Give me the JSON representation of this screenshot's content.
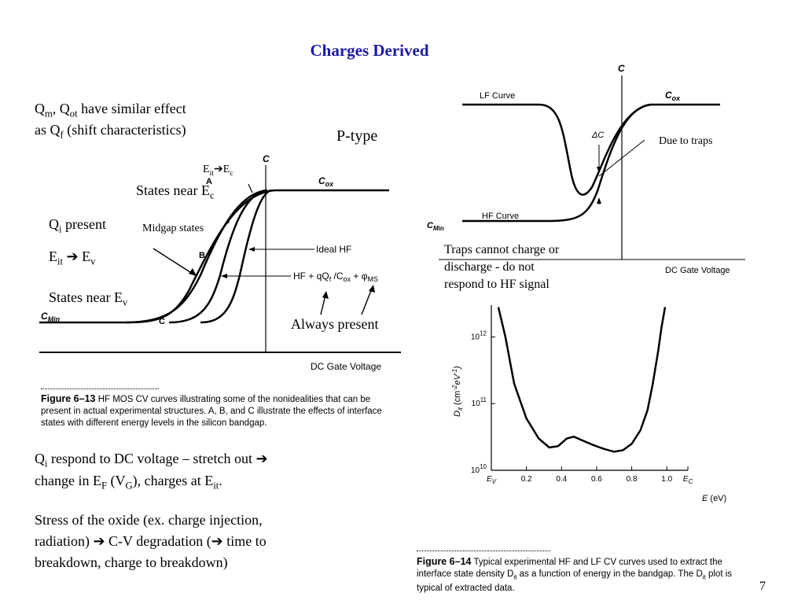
{
  "slide": {
    "title": "Charges Derived",
    "page_number": "7",
    "ptype_label": "P-type",
    "intro": {
      "q": "Q",
      "m_sub": "m",
      "comma": ", Q",
      "ot_sub": "ot",
      "line1_rest": " have similar effect",
      "line2_a": "as Q",
      "f_sub": "f",
      "line2_b": " (shift characteristics)"
    },
    "left_labels": {
      "eit": "E",
      "eit_sub": "it",
      "arrow": "➔",
      "ec": "E",
      "ec_sub": "c",
      "states_near_ec": "States near E",
      "states_near_ec_sub": "c",
      "qi_present": "Q",
      "qi_sub": "i",
      "qi_present_rest": " present",
      "midgap": "Midgap states",
      "eit_ev_a": "E",
      "eit_ev_sub": "it",
      "eit_ev_arrow": " ➔ ",
      "eit_ev_b": "E",
      "eit_ev_sub2": "v",
      "states_near_ev": "States near E",
      "states_near_ev_sub": "v",
      "always_present": "Always present"
    },
    "bottom_text": {
      "p1_a": "Q",
      "p1_sub": "i",
      "p1_b": " respond to DC voltage – stretch out  ➔",
      "p1_c": "change in E",
      "p1_sub2": "F",
      "p1_d": " (V",
      "p1_sub3": "G",
      "p1_e": "), charges at E",
      "p1_sub4": "it",
      "p1_f": ".",
      "p2_line1": "Stress of the oxide (ex. charge injection,",
      "p2_line2": "radiation) ➔  C-V degradation (➔ time to",
      "p2_line3": "breakdown, charge to breakdown)"
    },
    "right_labels": {
      "due_to_traps": "Due to traps",
      "traps_line1": "Traps cannot charge or",
      "traps_line2": "discharge - do not",
      "traps_line3": "respond to HF signal"
    },
    "fig13": {
      "c_axis": "C",
      "cox": "C",
      "cox_sub": "ox",
      "cmin": "C",
      "cmin_sub": "Min",
      "a": "A",
      "b": "B",
      "c": "C",
      "ideal_hf": "Ideal HF",
      "hf_shift": "HF + qQ",
      "hf_shift_f": "f",
      "hf_shift_mid": " /C",
      "hf_shift_ox": "ox",
      "hf_shift_end": " + φ",
      "hf_shift_ms": "MS",
      "xlabel": "DC Gate Voltage",
      "caption_bold": "Figure 6–13",
      "caption_text": "HF MOS CV curves illustrating some of the nonidealities that can be present in actual experimental structures. A, B, and C illustrate the effects of interface states with different energy levels in the silicon bandgap."
    },
    "fig14_cv": {
      "c_axis": "C",
      "lf": "LF Curve",
      "hf": "HF Curve",
      "cox": "C",
      "cox_sub": "ox",
      "cmin": "C",
      "cmin_sub": "Min",
      "delta_c": "ΔC",
      "xlabel": "DC Gate Voltage"
    },
    "fig14": {
      "caption_bold": "Figure 6–14",
      "caption_text": "Typical experimental HF and LF CV curves used to extract the interface state density D",
      "caption_text_sub": "it",
      "caption_text2": " as a function of energy in the bandgap. The D",
      "caption_text_sub2": "it",
      "caption_text3": " plot is typical of extracted data."
    }
  },
  "chart_data": {
    "type": "line",
    "title": "",
    "xlabel": "E (eV)",
    "ylabel": "D_it (cm^-2 eV^-1)",
    "yscale": "log",
    "x_ticks": [
      "E_V",
      "0.2",
      "0.4",
      "0.6",
      "0.8",
      "1.0",
      "E_C"
    ],
    "y_ticks": [
      "10^10",
      "10^11",
      "10^12"
    ],
    "xlim": [
      0,
      1.12
    ],
    "ylim": [
      10000000000,
      3000000000000
    ],
    "series": [
      {
        "x": [
          0.04,
          0.08,
          0.13,
          0.2,
          0.27,
          0.33,
          0.38,
          0.43,
          0.47,
          0.52,
          0.58,
          0.64,
          0.7,
          0.75,
          0.8,
          0.85,
          0.89,
          0.92,
          0.95,
          0.97,
          0.99
        ],
        "y": [
          2800000000000,
          1000000000000,
          200000000000,
          60000000000,
          30000000000,
          22000000000,
          23000000000,
          30000000000,
          32000000000,
          28000000000,
          24000000000,
          21000000000,
          19000000000,
          20000000000,
          25000000000,
          40000000000,
          80000000000,
          200000000000,
          600000000000,
          1400000000000,
          2800000000000
        ]
      }
    ],
    "grid": false
  }
}
